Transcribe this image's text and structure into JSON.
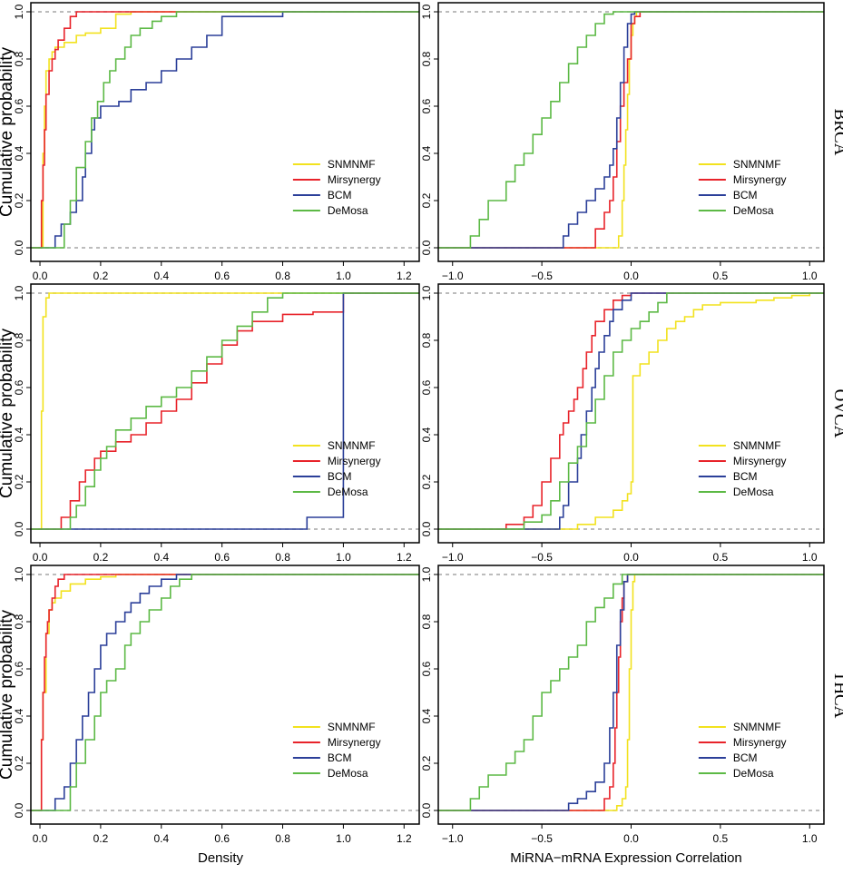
{
  "figure": {
    "xlabel_left": "Density",
    "xlabel_right": "MiRNA−mRNA Expression Correlation",
    "ylabel": "Cumulative probability",
    "rows": [
      "BRCA",
      "OVCA",
      "THCA"
    ]
  },
  "legend": [
    {
      "name": "SNMNMF",
      "color": "#f2e21e"
    },
    {
      "name": "Mirsynergy",
      "color": "#e8232a"
    },
    {
      "name": "BCM",
      "color": "#2b3f99"
    },
    {
      "name": "DeMosa",
      "color": "#5cb945"
    }
  ],
  "chart_data": [
    {
      "type": "line",
      "row": "BRCA",
      "xaxis": "Density",
      "xlim": [
        -0.03,
        1.25
      ],
      "ylim": [
        0,
        1
      ],
      "xticks": [
        "0.0",
        "0.2",
        "0.4",
        "0.6",
        "0.8",
        "1.0",
        "1.2"
      ],
      "yticks": [
        "0.0",
        "0.2",
        "0.4",
        "0.6",
        "0.8",
        "1.0"
      ],
      "series": [
        {
          "name": "SNMNMF",
          "x": [
            0,
            0.01,
            0.015,
            0.02,
            0.03,
            0.04,
            0.05,
            0.08,
            0.12,
            0.15,
            0.2,
            0.25,
            0.3
          ],
          "y": [
            0,
            0.4,
            0.6,
            0.75,
            0.8,
            0.83,
            0.85,
            0.87,
            0.9,
            0.91,
            0.93,
            0.99,
            1
          ]
        },
        {
          "name": "Mirsynergy",
          "x": [
            0,
            0.005,
            0.01,
            0.015,
            0.02,
            0.03,
            0.04,
            0.05,
            0.06,
            0.08,
            0.1,
            0.12
          ],
          "y": [
            0,
            0.2,
            0.35,
            0.5,
            0.65,
            0.75,
            0.8,
            0.84,
            0.88,
            0.93,
            0.98,
            1
          ]
        },
        {
          "name": "BCM",
          "x": [
            0.03,
            0.05,
            0.07,
            0.1,
            0.12,
            0.14,
            0.15,
            0.17,
            0.18,
            0.2,
            0.22,
            0.26,
            0.3,
            0.35,
            0.4,
            0.45,
            0.5,
            0.55,
            0.6,
            0.8,
            1.0
          ],
          "y": [
            0,
            0.05,
            0.1,
            0.15,
            0.2,
            0.3,
            0.4,
            0.5,
            0.55,
            0.6,
            0.6,
            0.62,
            0.67,
            0.7,
            0.75,
            0.8,
            0.85,
            0.9,
            0.98,
            1,
            1
          ]
        },
        {
          "name": "DeMosa",
          "x": [
            0.05,
            0.08,
            0.1,
            0.12,
            0.15,
            0.17,
            0.19,
            0.21,
            0.23,
            0.25,
            0.28,
            0.3,
            0.33,
            0.37,
            0.4,
            0.45,
            0.5
          ],
          "y": [
            0,
            0.1,
            0.2,
            0.34,
            0.45,
            0.55,
            0.62,
            0.7,
            0.75,
            0.8,
            0.85,
            0.9,
            0.93,
            0.96,
            0.98,
            1,
            1
          ]
        }
      ]
    },
    {
      "type": "line",
      "row": "BRCA",
      "xaxis": "MiRNA−mRNA Expression Correlation",
      "xlim": [
        -1.08,
        1.08
      ],
      "ylim": [
        0,
        1
      ],
      "xticks": [
        "−1.0",
        "−0.5",
        "0.0",
        "0.5",
        "1.0"
      ],
      "yticks": [
        "0.0",
        "0.2",
        "0.4",
        "0.6",
        "0.8",
        "1.0"
      ],
      "series": [
        {
          "name": "SNMNMF",
          "x": [
            -0.1,
            -0.07,
            -0.05,
            -0.04,
            -0.03,
            -0.02,
            -0.01,
            0.0,
            0.01,
            0.02,
            0.03
          ],
          "y": [
            0,
            0.05,
            0.2,
            0.35,
            0.5,
            0.65,
            0.8,
            0.9,
            0.95,
            0.98,
            1
          ]
        },
        {
          "name": "Mirsynergy",
          "x": [
            -0.25,
            -0.2,
            -0.15,
            -0.12,
            -0.1,
            -0.08,
            -0.06,
            -0.04,
            -0.02,
            0.0,
            0.02,
            0.05
          ],
          "y": [
            0,
            0.08,
            0.15,
            0.2,
            0.3,
            0.45,
            0.6,
            0.7,
            0.8,
            0.95,
            0.98,
            1
          ]
        },
        {
          "name": "BCM",
          "x": [
            -0.4,
            -0.38,
            -0.35,
            -0.3,
            -0.25,
            -0.2,
            -0.15,
            -0.12,
            -0.1,
            -0.08,
            -0.06,
            -0.04,
            -0.02,
            0.0,
            0.02
          ],
          "y": [
            0,
            0.05,
            0.1,
            0.15,
            0.2,
            0.25,
            0.3,
            0.35,
            0.42,
            0.55,
            0.7,
            0.85,
            0.95,
            0.99,
            1
          ]
        },
        {
          "name": "DeMosa",
          "x": [
            -0.95,
            -0.9,
            -0.85,
            -0.8,
            -0.7,
            -0.65,
            -0.6,
            -0.55,
            -0.5,
            -0.45,
            -0.4,
            -0.35,
            -0.3,
            -0.25,
            -0.2,
            -0.15,
            -0.1
          ],
          "y": [
            0,
            0.05,
            0.12,
            0.2,
            0.28,
            0.35,
            0.4,
            0.48,
            0.55,
            0.62,
            0.7,
            0.78,
            0.85,
            0.9,
            0.95,
            0.99,
            1
          ]
        }
      ]
    },
    {
      "type": "line",
      "row": "OVCA",
      "xaxis": "Density",
      "xlim": [
        -0.03,
        1.25
      ],
      "ylim": [
        0,
        1
      ],
      "xticks": [
        "0.0",
        "0.2",
        "0.4",
        "0.6",
        "0.8",
        "1.0",
        "1.2"
      ],
      "yticks": [
        "0.0",
        "0.2",
        "0.4",
        "0.6",
        "0.8",
        "1.0"
      ],
      "series": [
        {
          "name": "SNMNMF",
          "x": [
            0,
            0.005,
            0.01,
            0.02,
            0.03
          ],
          "y": [
            0,
            0.5,
            0.9,
            0.98,
            1
          ]
        },
        {
          "name": "Mirsynergy",
          "x": [
            0.05,
            0.07,
            0.1,
            0.13,
            0.15,
            0.18,
            0.2,
            0.25,
            0.3,
            0.35,
            0.4,
            0.45,
            0.5,
            0.55,
            0.6,
            0.65,
            0.7,
            0.8,
            0.9,
            1.0
          ],
          "y": [
            0,
            0.05,
            0.12,
            0.2,
            0.25,
            0.3,
            0.33,
            0.37,
            0.4,
            0.45,
            0.5,
            0.55,
            0.62,
            0.7,
            0.78,
            0.84,
            0.88,
            0.91,
            0.92,
            1
          ]
        },
        {
          "name": "BCM",
          "x": [
            0.75,
            0.85,
            0.88,
            0.95,
            1.0
          ],
          "y": [
            0,
            0,
            0.05,
            0.05,
            1
          ]
        },
        {
          "name": "DeMosa",
          "x": [
            0.08,
            0.1,
            0.12,
            0.15,
            0.18,
            0.2,
            0.22,
            0.25,
            0.3,
            0.35,
            0.4,
            0.45,
            0.5,
            0.55,
            0.6,
            0.65,
            0.7,
            0.75,
            0.8
          ],
          "y": [
            0,
            0.05,
            0.1,
            0.18,
            0.25,
            0.3,
            0.35,
            0.42,
            0.47,
            0.52,
            0.56,
            0.6,
            0.67,
            0.73,
            0.8,
            0.86,
            0.92,
            0.98,
            1
          ]
        }
      ]
    },
    {
      "type": "line",
      "row": "OVCA",
      "xaxis": "MiRNA−mRNA Expression Correlation",
      "xlim": [
        -1.08,
        1.08
      ],
      "ylim": [
        0,
        1
      ],
      "xticks": [
        "−1.0",
        "−0.5",
        "0.0",
        "0.5",
        "1.0"
      ],
      "yticks": [
        "0.0",
        "0.2",
        "0.4",
        "0.6",
        "0.8",
        "1.0"
      ],
      "series": [
        {
          "name": "SNMNMF",
          "x": [
            -0.35,
            -0.3,
            -0.2,
            -0.1,
            -0.05,
            -0.02,
            0.0,
            0.01,
            0.05,
            0.1,
            0.15,
            0.2,
            0.25,
            0.3,
            0.35,
            0.4,
            0.5,
            0.6,
            0.7,
            0.8,
            0.9,
            1.0
          ],
          "y": [
            0,
            0.02,
            0.05,
            0.08,
            0.12,
            0.15,
            0.2,
            0.65,
            0.7,
            0.75,
            0.8,
            0.85,
            0.88,
            0.9,
            0.93,
            0.95,
            0.96,
            0.96,
            0.97,
            0.98,
            0.99,
            1
          ]
        },
        {
          "name": "Mirsynergy",
          "x": [
            -0.8,
            -0.7,
            -0.6,
            -0.55,
            -0.5,
            -0.45,
            -0.4,
            -0.38,
            -0.35,
            -0.32,
            -0.3,
            -0.27,
            -0.25,
            -0.22,
            -0.2,
            -0.15,
            -0.1,
            -0.05,
            0.0
          ],
          "y": [
            0,
            0.02,
            0.05,
            0.1,
            0.2,
            0.3,
            0.4,
            0.45,
            0.5,
            0.55,
            0.6,
            0.68,
            0.75,
            0.82,
            0.88,
            0.93,
            0.97,
            0.99,
            1
          ]
        },
        {
          "name": "BCM",
          "x": [
            -0.45,
            -0.4,
            -0.38,
            -0.35,
            -0.3,
            -0.28,
            -0.25,
            -0.22,
            -0.2,
            -0.18,
            -0.15,
            -0.12,
            -0.1,
            -0.05,
            0.0
          ],
          "y": [
            0,
            0.05,
            0.1,
            0.2,
            0.3,
            0.4,
            0.5,
            0.6,
            0.68,
            0.75,
            0.82,
            0.88,
            0.93,
            0.97,
            1
          ]
        },
        {
          "name": "DeMosa",
          "x": [
            -0.75,
            -0.6,
            -0.5,
            -0.45,
            -0.4,
            -0.35,
            -0.3,
            -0.25,
            -0.2,
            -0.15,
            -0.1,
            -0.05,
            0.0,
            0.05,
            0.1,
            0.15,
            0.2
          ],
          "y": [
            0,
            0.03,
            0.06,
            0.12,
            0.2,
            0.28,
            0.35,
            0.45,
            0.55,
            0.65,
            0.75,
            0.8,
            0.85,
            0.88,
            0.92,
            0.96,
            1
          ]
        }
      ]
    },
    {
      "type": "line",
      "row": "THCA",
      "xaxis": "Density",
      "xlim": [
        -0.03,
        1.25
      ],
      "ylim": [
        0,
        1
      ],
      "xticks": [
        "0.0",
        "0.2",
        "0.4",
        "0.6",
        "0.8",
        "1.0",
        "1.2"
      ],
      "yticks": [
        "0.0",
        "0.2",
        "0.4",
        "0.6",
        "0.8",
        "1.0"
      ],
      "series": [
        {
          "name": "SNMNMF",
          "x": [
            0,
            0.005,
            0.01,
            0.02,
            0.03,
            0.04,
            0.05,
            0.07,
            0.1,
            0.15,
            0.2,
            0.25
          ],
          "y": [
            0,
            0.3,
            0.5,
            0.75,
            0.85,
            0.88,
            0.9,
            0.93,
            0.96,
            0.98,
            0.99,
            1
          ]
        },
        {
          "name": "Mirsynergy",
          "x": [
            0,
            0.005,
            0.01,
            0.015,
            0.02,
            0.025,
            0.03,
            0.04,
            0.05,
            0.06,
            0.08
          ],
          "y": [
            0,
            0.3,
            0.5,
            0.65,
            0.75,
            0.8,
            0.85,
            0.9,
            0.95,
            0.98,
            1
          ]
        },
        {
          "name": "BCM",
          "x": [
            0.02,
            0.05,
            0.08,
            0.1,
            0.12,
            0.14,
            0.16,
            0.18,
            0.2,
            0.22,
            0.25,
            0.28,
            0.3,
            0.33,
            0.36,
            0.4,
            0.45
          ],
          "y": [
            0,
            0.05,
            0.1,
            0.2,
            0.3,
            0.4,
            0.5,
            0.6,
            0.7,
            0.75,
            0.8,
            0.84,
            0.88,
            0.92,
            0.95,
            0.98,
            1
          ]
        },
        {
          "name": "DeMosa",
          "x": [
            0.07,
            0.1,
            0.12,
            0.15,
            0.18,
            0.2,
            0.22,
            0.25,
            0.28,
            0.3,
            0.33,
            0.36,
            0.4,
            0.43,
            0.46,
            0.5
          ],
          "y": [
            0,
            0.1,
            0.2,
            0.3,
            0.4,
            0.5,
            0.55,
            0.6,
            0.7,
            0.75,
            0.8,
            0.85,
            0.9,
            0.95,
            0.98,
            1
          ]
        }
      ]
    },
    {
      "type": "line",
      "row": "THCA",
      "xaxis": "MiRNA−mRNA Expression Correlation",
      "xlim": [
        -1.08,
        1.08
      ],
      "ylim": [
        0,
        1
      ],
      "xticks": [
        "−1.0",
        "−0.5",
        "0.0",
        "0.5",
        "1.0"
      ],
      "yticks": [
        "0.0",
        "0.2",
        "0.4",
        "0.6",
        "0.8",
        "1.0"
      ],
      "series": [
        {
          "name": "SNMNMF",
          "x": [
            -0.15,
            -0.08,
            -0.05,
            -0.03,
            -0.02,
            -0.01,
            0.0,
            0.01,
            0.02
          ],
          "y": [
            0,
            0.02,
            0.05,
            0.1,
            0.3,
            0.6,
            0.85,
            0.97,
            1
          ]
        },
        {
          "name": "Mirsynergy",
          "x": [
            -0.2,
            -0.15,
            -0.12,
            -0.1,
            -0.09,
            -0.08,
            -0.07,
            -0.06,
            -0.05,
            -0.04,
            -0.02
          ],
          "y": [
            0,
            0.05,
            0.1,
            0.2,
            0.35,
            0.5,
            0.65,
            0.8,
            0.9,
            0.97,
            1
          ]
        },
        {
          "name": "BCM",
          "x": [
            -0.4,
            -0.35,
            -0.3,
            -0.25,
            -0.2,
            -0.15,
            -0.12,
            -0.1,
            -0.08,
            -0.06,
            -0.04,
            -0.02
          ],
          "y": [
            0,
            0.03,
            0.05,
            0.08,
            0.12,
            0.2,
            0.35,
            0.5,
            0.7,
            0.85,
            0.97,
            1
          ]
        },
        {
          "name": "DeMosa",
          "x": [
            -0.95,
            -0.9,
            -0.85,
            -0.8,
            -0.7,
            -0.65,
            -0.6,
            -0.55,
            -0.5,
            -0.45,
            -0.4,
            -0.35,
            -0.3,
            -0.25,
            -0.2,
            -0.15,
            -0.1,
            -0.05
          ],
          "y": [
            0,
            0.05,
            0.1,
            0.15,
            0.2,
            0.25,
            0.3,
            0.4,
            0.5,
            0.55,
            0.6,
            0.65,
            0.7,
            0.8,
            0.86,
            0.9,
            0.96,
            1
          ]
        }
      ]
    }
  ]
}
